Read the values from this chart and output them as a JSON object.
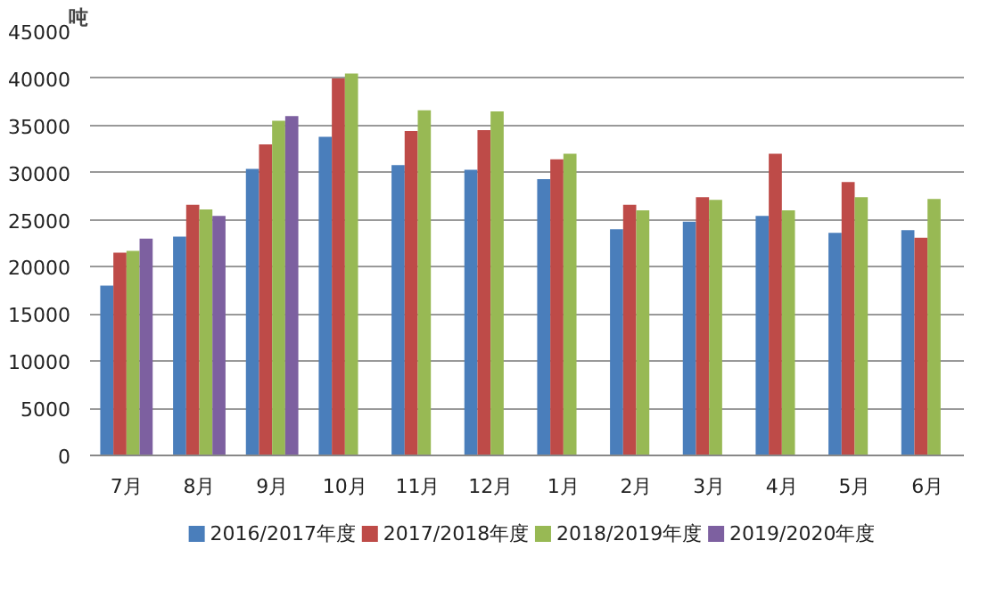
{
  "chart_data": {
    "type": "bar",
    "ylabel": "吨",
    "categories": [
      "7月",
      "8月",
      "9月",
      "10月",
      "11月",
      "12月",
      "1月",
      "2月",
      "3月",
      "4月",
      "5月",
      "6月"
    ],
    "series": [
      {
        "name": "2016/2017年度",
        "color": "#4a7ebb",
        "values": [
          18000,
          23200,
          30400,
          33800,
          30800,
          30300,
          29300,
          24000,
          24800,
          25400,
          23600,
          23900
        ]
      },
      {
        "name": "2017/2018年度",
        "color": "#be4b48",
        "values": [
          21500,
          26600,
          33000,
          40000,
          34400,
          34500,
          31400,
          26600,
          27400,
          32000,
          29000,
          23100
        ]
      },
      {
        "name": "2018/2019年度",
        "color": "#98b954",
        "values": [
          21700,
          26100,
          35500,
          40500,
          36600,
          36500,
          32000,
          26000,
          27100,
          26000,
          27400,
          27200
        ]
      },
      {
        "name": "2019/2020年度",
        "color": "#7d60a0",
        "values": [
          23000,
          25400,
          36000,
          null,
          null,
          null,
          null,
          null,
          null,
          null,
          null,
          null
        ]
      }
    ],
    "ylim": [
      0,
      45000
    ],
    "yticks": [
      0,
      5000,
      10000,
      15000,
      20000,
      25000,
      30000,
      35000,
      40000,
      45000
    ],
    "grid": "y",
    "legend": "bottom"
  }
}
